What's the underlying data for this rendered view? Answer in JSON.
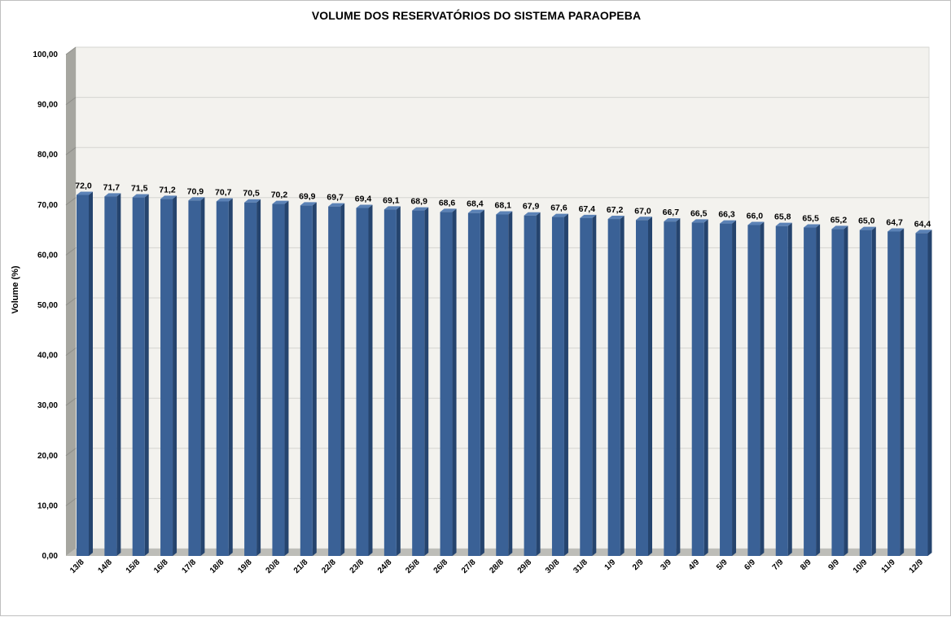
{
  "chart_data": {
    "type": "bar",
    "title": "VOLUME DOS RESERVATÓRIOS DO SISTEMA PARAOPEBA",
    "xlabel": "",
    "ylabel": "Volume (%)",
    "ylim": [
      0,
      100
    ],
    "yticks": [
      "0,00",
      "10,00",
      "20,00",
      "30,00",
      "40,00",
      "50,00",
      "60,00",
      "70,00",
      "80,00",
      "90,00",
      "100,00"
    ],
    "grid": true,
    "legend": "none",
    "categories": [
      "13/8",
      "14/8",
      "15/8",
      "16/8",
      "17/8",
      "18/8",
      "19/8",
      "20/8",
      "21/8",
      "22/8",
      "23/8",
      "24/8",
      "25/8",
      "26/8",
      "27/8",
      "28/8",
      "29/8",
      "30/8",
      "31/8",
      "1/9",
      "2/9",
      "3/9",
      "4/9",
      "5/9",
      "6/9",
      "7/9",
      "8/9",
      "9/9",
      "10/9",
      "11/9",
      "12/9"
    ],
    "values": [
      72.0,
      71.7,
      71.5,
      71.2,
      70.9,
      70.7,
      70.5,
      70.2,
      69.9,
      69.7,
      69.4,
      69.1,
      68.9,
      68.6,
      68.4,
      68.1,
      67.9,
      67.6,
      67.4,
      67.2,
      67.0,
      66.7,
      66.5,
      66.3,
      66.0,
      65.8,
      65.5,
      65.2,
      65.0,
      64.7,
      64.4
    ],
    "data_labels": [
      "72,0",
      "71,7",
      "71,5",
      "71,2",
      "70,9",
      "70,7",
      "70,5",
      "70,2",
      "69,9",
      "69,7",
      "69,4",
      "69,1",
      "68,9",
      "68,6",
      "68,4",
      "68,1",
      "67,9",
      "67,6",
      "67,4",
      "67,2",
      "67,0",
      "66,7",
      "66,5",
      "66,3",
      "66,0",
      "65,8",
      "65,5",
      "65,2",
      "65,0",
      "64,7",
      "64,4"
    ],
    "colors": {
      "bar_front": "#3A6196",
      "bar_side": "#25446E",
      "bar_top": "#5B82B6",
      "plot_back": "#F3F2EE",
      "left_wall": "#A6A6A0",
      "floor": "#BDBDB8",
      "grid": "#D4D4D0"
    }
  }
}
